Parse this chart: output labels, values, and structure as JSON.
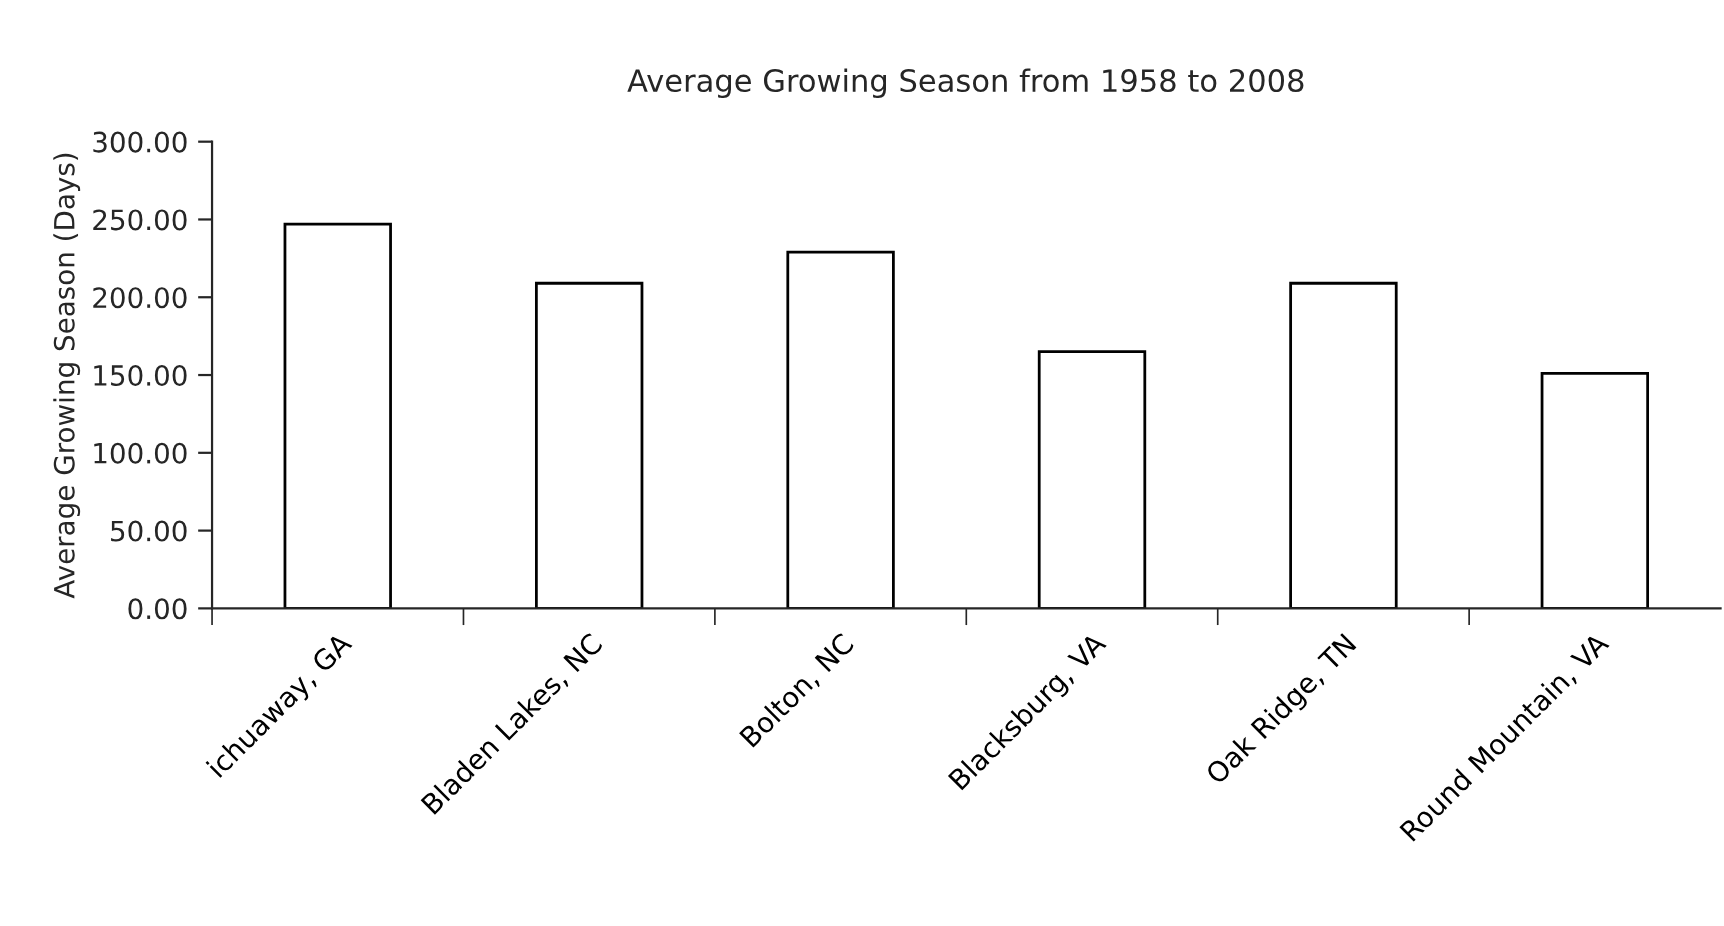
{
  "chart_data": {
    "type": "bar",
    "title": "Average Growing Season from 1958 to 2008",
    "ylabel": "Average Growing Season (Days)",
    "categories": [
      "ichuaway, GA",
      "Bladen Lakes, NC",
      "Bolton, NC",
      "Blacksburg, VA",
      "Oak Ridge, TN",
      "Round Mountain, VA"
    ],
    "values": [
      247,
      209,
      229,
      165,
      209,
      151
    ],
    "color": "#ffffff",
    "ylim": [
      0,
      300
    ],
    "yticks": [
      {
        "value": 0,
        "label": "0.00"
      },
      {
        "value": 50,
        "label": "50.00"
      },
      {
        "value": 100,
        "label": "100.00"
      },
      {
        "value": 150,
        "label": "150.00"
      },
      {
        "value": 200,
        "label": "200.00"
      },
      {
        "value": 250,
        "label": "250.00"
      },
      {
        "value": 300,
        "label": "300.00"
      }
    ],
    "grid": false,
    "legend": false
  }
}
